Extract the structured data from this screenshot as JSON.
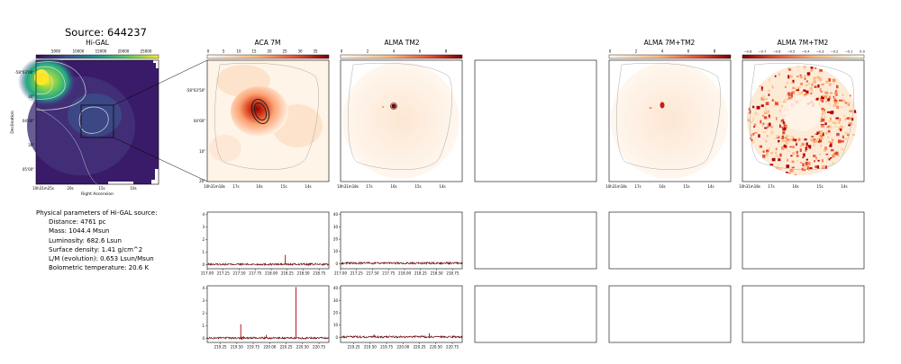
{
  "figure_title": "Source: 644237",
  "panels": {
    "higal": {
      "title": "Hi-GAL",
      "xlabel": "Right Ascension",
      "ylabel": "Declination",
      "x_ticks": [
        "10h31m25s",
        "20s",
        "15s",
        "10s"
      ],
      "y_ticks": [
        "-58°03'00\"",
        "30\"",
        "04'00\"",
        "30\"",
        "05'00\""
      ],
      "cbar_ticks": [
        "5000",
        "10000",
        "15000",
        "20000",
        "25000"
      ]
    },
    "aca7m": {
      "title": "ACA 7M",
      "x_ticks": [
        "10h31m18s",
        "17s",
        "16s",
        "15s",
        "14s"
      ],
      "y_ticks": [
        "-58°03'50\"",
        "04'00\"",
        "10\"",
        "20\""
      ],
      "cbar_ticks": [
        "0",
        "5",
        "10",
        "15",
        "20",
        "25",
        "30",
        "35"
      ]
    },
    "tm2": {
      "title": "ALMA TM2",
      "x_ticks": [
        "10h31m18s",
        "17s",
        "16s",
        "15s",
        "14s"
      ],
      "cbar_ticks": [
        "0",
        "2",
        "4",
        "6",
        "8"
      ]
    },
    "tm": {
      "title": "ALMA 7M+TM2",
      "x_ticks": [
        "10h31m18s",
        "17s",
        "16s",
        "15s",
        "14s"
      ],
      "cbar_ticks": [
        "0",
        "2",
        "4",
        "6",
        "8"
      ]
    },
    "tm_neg": {
      "title": "ALMA 7M+TM2",
      "x_ticks": [
        "10h31m18s",
        "17s",
        "16s",
        "15s",
        "14s"
      ],
      "cbar_ticks": [
        "−0.8",
        "−0.7",
        "−0.6",
        "−0.5",
        "−0.4",
        "−0.3",
        "−0.2",
        "−0.1",
        "0.0"
      ]
    }
  },
  "params": {
    "heading": "Physical parameters of Hi-GAL source:",
    "distance": "Distance: 4761 pc",
    "mass": "Mass: 1044.4 Msun",
    "luminosity": "Luminosity: 682.6 Lsun",
    "surface_density": "Surface density: 1.41 g/cm^2",
    "lm": "L/M (evolution): 0.653 Lsun/Msun",
    "tbol": "Bolometric temperature: 20.6 K"
  },
  "chart_data": [
    {
      "type": "line",
      "panel": "spectrum-row1-aca",
      "color": "#b00000",
      "xlim": [
        217.0,
        218.9
      ],
      "x_ticks": [
        "217.00",
        "217.25",
        "217.50",
        "217.75",
        "218.00",
        "218.25",
        "218.50",
        "218.75"
      ],
      "ylim": [
        -0.3,
        4.2
      ],
      "y_ticks": [
        "0",
        "1",
        "2",
        "3",
        "4"
      ],
      "baseline": 0.05,
      "lines": [
        {
          "x": 218.22,
          "y": 0.8
        },
        {
          "x": 218.47,
          "y": 0.15
        },
        {
          "x": 217.4,
          "y": 0.1
        }
      ]
    },
    {
      "type": "line",
      "panel": "spectrum-row1-tm2",
      "color": "#b00000",
      "xlim": [
        217.0,
        218.9
      ],
      "x_ticks": [
        "217.00",
        "217.25",
        "217.50",
        "217.75",
        "218.00",
        "218.25",
        "218.50",
        "218.75"
      ],
      "ylim": [
        -4,
        42
      ],
      "y_ticks": [
        "0",
        "10",
        "20",
        "30",
        "40"
      ],
      "baseline": 0.5,
      "lines": [
        {
          "x": 218.22,
          "y": 1.5
        }
      ]
    },
    {
      "type": "line",
      "panel": "spectrum-row2-aca",
      "color": "#b00000",
      "xlim": [
        219.05,
        220.9
      ],
      "x_ticks": [
        "219.25",
        "219.50",
        "219.75",
        "220.00",
        "220.25",
        "220.50",
        "220.75"
      ],
      "ylim": [
        -0.3,
        4.2
      ],
      "y_ticks": [
        "0",
        "1",
        "2",
        "3",
        "4"
      ],
      "baseline": 0.05,
      "lines": [
        {
          "x": 219.56,
          "y": 1.15
        },
        {
          "x": 220.4,
          "y": 4.1
        },
        {
          "x": 219.95,
          "y": 0.3
        },
        {
          "x": 219.6,
          "y": 0.2
        }
      ]
    },
    {
      "type": "line",
      "panel": "spectrum-row2-tm2",
      "color": "#b00000",
      "xlim": [
        219.05,
        220.9
      ],
      "x_ticks": [
        "219.25",
        "219.50",
        "219.75",
        "220.00",
        "220.25",
        "220.50",
        "220.75"
      ],
      "ylim": [
        -4,
        42
      ],
      "y_ticks": [
        "0",
        "10",
        "20",
        "30",
        "40"
      ],
      "baseline": 0.5,
      "lines": [
        {
          "x": 219.56,
          "y": 2.5
        },
        {
          "x": 220.4,
          "y": 3.5
        }
      ]
    }
  ]
}
